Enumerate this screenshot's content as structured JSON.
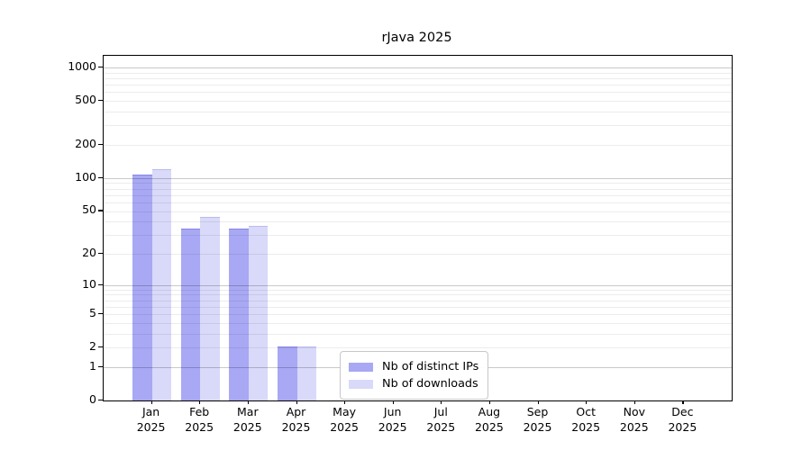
{
  "chart_data": {
    "type": "bar",
    "title": "rJava 2025",
    "categories": [
      "Jan 2025",
      "Feb 2025",
      "Mar 2025",
      "Apr 2025",
      "May 2025",
      "Jun 2025",
      "Jul 2025",
      "Aug 2025",
      "Sep 2025",
      "Oct 2025",
      "Nov 2025",
      "Dec 2025"
    ],
    "x_tick_month": [
      "Jan",
      "Feb",
      "Mar",
      "Apr",
      "May",
      "Jun",
      "Jul",
      "Aug",
      "Sep",
      "Oct",
      "Nov",
      "Dec"
    ],
    "x_tick_year": "2025",
    "series": [
      {
        "name": "Nb of distinct IPs",
        "color": "#a8a8f4",
        "values": [
          105,
          34,
          34,
          2,
          0,
          0,
          0,
          0,
          0,
          0,
          0,
          0
        ]
      },
      {
        "name": "Nb of downloads",
        "color": "#d9d9f9",
        "values": [
          119,
          43,
          36,
          2,
          0,
          0,
          0,
          0,
          0,
          0,
          0,
          0
        ]
      }
    ],
    "yscale": "log1p",
    "ylim": [
      0,
      1276
    ],
    "ylabel": "",
    "xlabel": "",
    "y_tick_labels": [
      0,
      1,
      2,
      5,
      10,
      20,
      50,
      100,
      200,
      500,
      1000
    ],
    "grid_major_values": [
      1,
      10,
      100,
      1000
    ],
    "grid_minor_values": [
      2,
      3,
      4,
      5,
      6,
      7,
      8,
      9,
      20,
      30,
      40,
      50,
      60,
      70,
      80,
      90,
      200,
      300,
      400,
      500,
      600,
      700,
      800,
      900
    ],
    "grid": "horizontal",
    "legend_position": "lower-center"
  },
  "colors": {
    "bar_distinct_ips": "#a8a8f4",
    "bar_downloads": "#d9d9f9",
    "grid_minor": "#ececec",
    "grid_major": "#c9c9c9",
    "spine": "#000000",
    "legend_border": "#c7c7c7",
    "background": "#ffffff"
  }
}
